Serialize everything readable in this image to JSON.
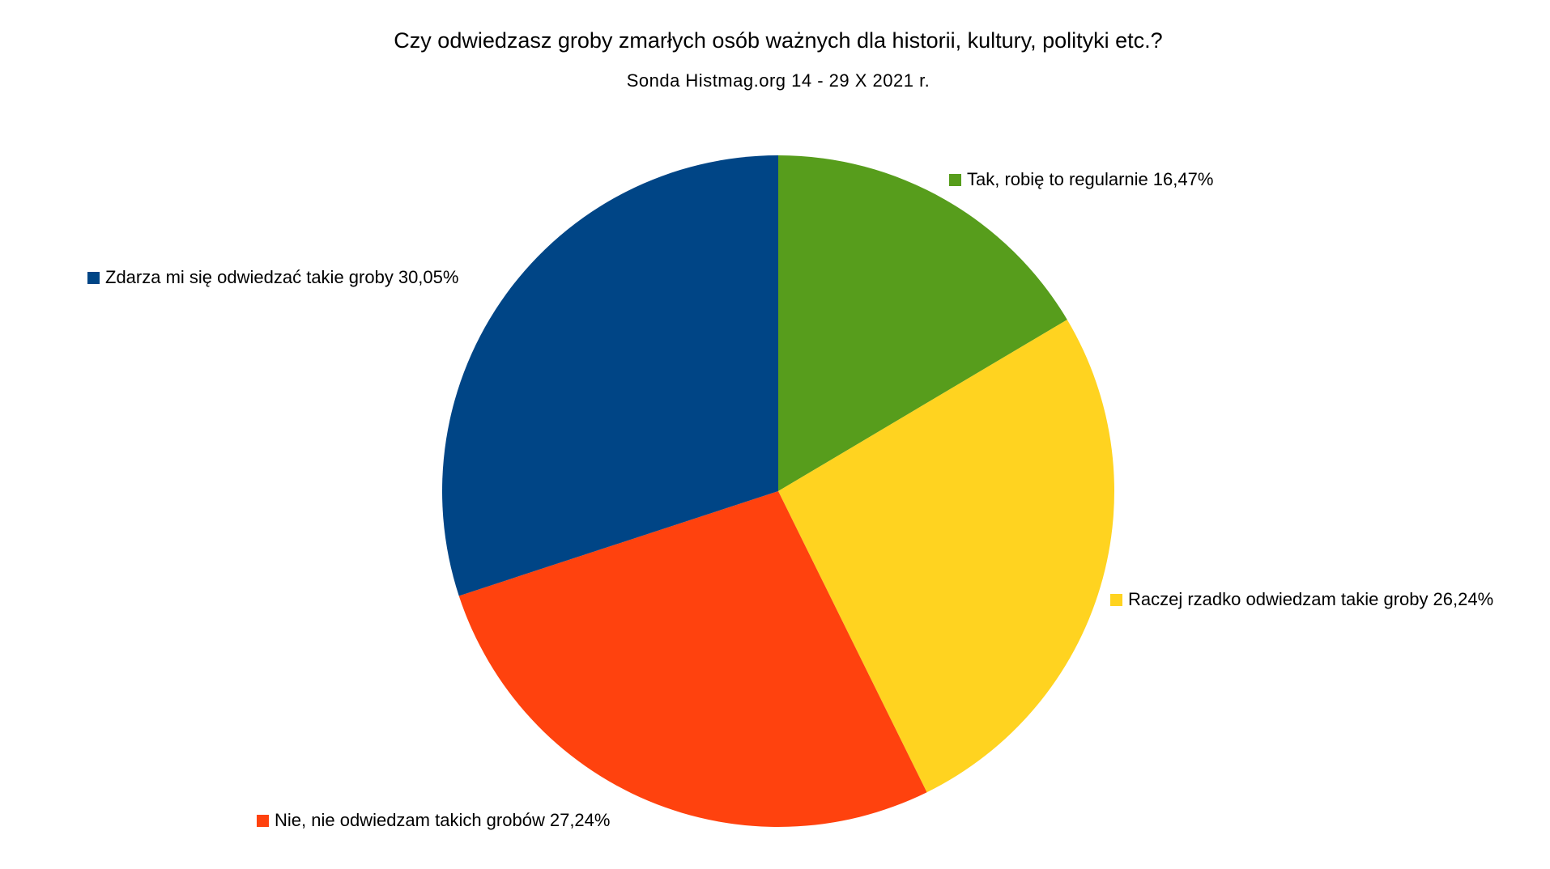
{
  "chart_data": {
    "type": "pie",
    "title": "Czy odwiedzasz groby zmarłych osób ważnych dla historii, kultury, polityki etc.?",
    "subtitle": "Sonda Histmag.org 14 - 29 X 2021 r.",
    "categories": [
      "Tak, robię to regularnie",
      "Raczej rzadko odwiedzam takie groby",
      "Nie, nie odwiedzam takich grobów",
      "Zdarza mi się odwiedzać takie groby"
    ],
    "values": [
      16.47,
      26.24,
      27.24,
      30.05
    ],
    "value_labels": [
      "16,47%",
      "26,24%",
      "27,24%",
      "30,05%"
    ],
    "colors": [
      "#579d1c",
      "#ffd320",
      "#ff420e",
      "#004586"
    ]
  }
}
